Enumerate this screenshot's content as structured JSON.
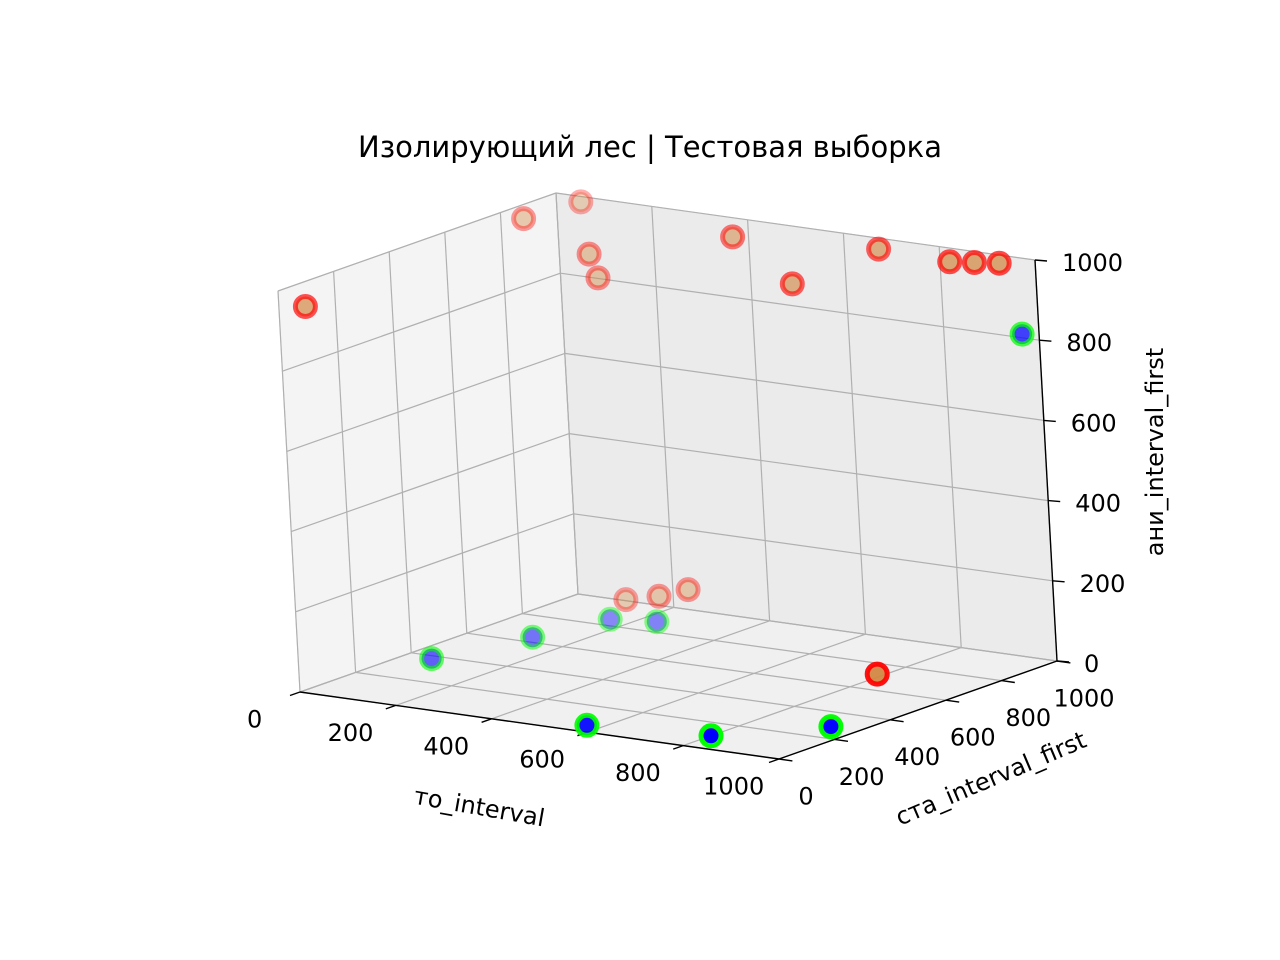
{
  "chart_data": {
    "type": "scatter",
    "projection": "3d",
    "title": "Изолирующий лес | Тестовая выборка",
    "xlabel": "то_interval",
    "ylabel": "ста_interval_first",
    "zlabel": "ани_interval_first",
    "xlim": [
      0,
      1000
    ],
    "ylim": [
      0,
      1000
    ],
    "zlim": [
      0,
      1000
    ],
    "xticks": [
      "0",
      "200",
      "400",
      "600",
      "800",
      "1000"
    ],
    "yticks": [
      "0",
      "200",
      "400",
      "600",
      "800",
      "1000"
    ],
    "zticks": [
      "0",
      "200",
      "400",
      "600",
      "800",
      "1000"
    ],
    "grid": true,
    "series": [
      {
        "edge_color": "#ff0000",
        "face_color": "#d2853f",
        "points": [
          {
            "x": 20,
            "y": 60,
            "z": 950
          },
          {
            "x": 60,
            "y": 780,
            "z": 1000
          },
          {
            "x": 75,
            "y": 960,
            "z": 1000
          },
          {
            "x": 170,
            "y": 820,
            "z": 920
          },
          {
            "x": 180,
            "y": 830,
            "z": 860
          },
          {
            "x": 450,
            "y": 860,
            "z": 1000
          },
          {
            "x": 600,
            "y": 810,
            "z": 920
          },
          {
            "x": 720,
            "y": 920,
            "z": 1000
          },
          {
            "x": 880,
            "y": 900,
            "z": 1000
          },
          {
            "x": 920,
            "y": 920,
            "z": 1000
          },
          {
            "x": 960,
            "y": 940,
            "z": 1000
          },
          {
            "x": 130,
            "y": 950,
            "z": 20
          },
          {
            "x": 200,
            "y": 950,
            "z": 40
          },
          {
            "x": 250,
            "y": 970,
            "z": 60
          },
          {
            "x": 960,
            "y": 430,
            "z": 100
          }
        ]
      },
      {
        "edge_color": "#00ff00",
        "face_color": "#0000ff",
        "points": [
          {
            "x": 90,
            "y": 320,
            "z": 20
          },
          {
            "x": 150,
            "y": 580,
            "z": 20
          },
          {
            "x": 190,
            "y": 790,
            "z": 20
          },
          {
            "x": 270,
            "y": 820,
            "z": 20
          },
          {
            "x": 570,
            "y": 50,
            "z": 0
          },
          {
            "x": 800,
            "y": 100,
            "z": 0
          },
          {
            "x": 940,
            "y": 290,
            "z": 0
          },
          {
            "x": 1000,
            "y": 940,
            "z": 830
          }
        ]
      }
    ]
  }
}
